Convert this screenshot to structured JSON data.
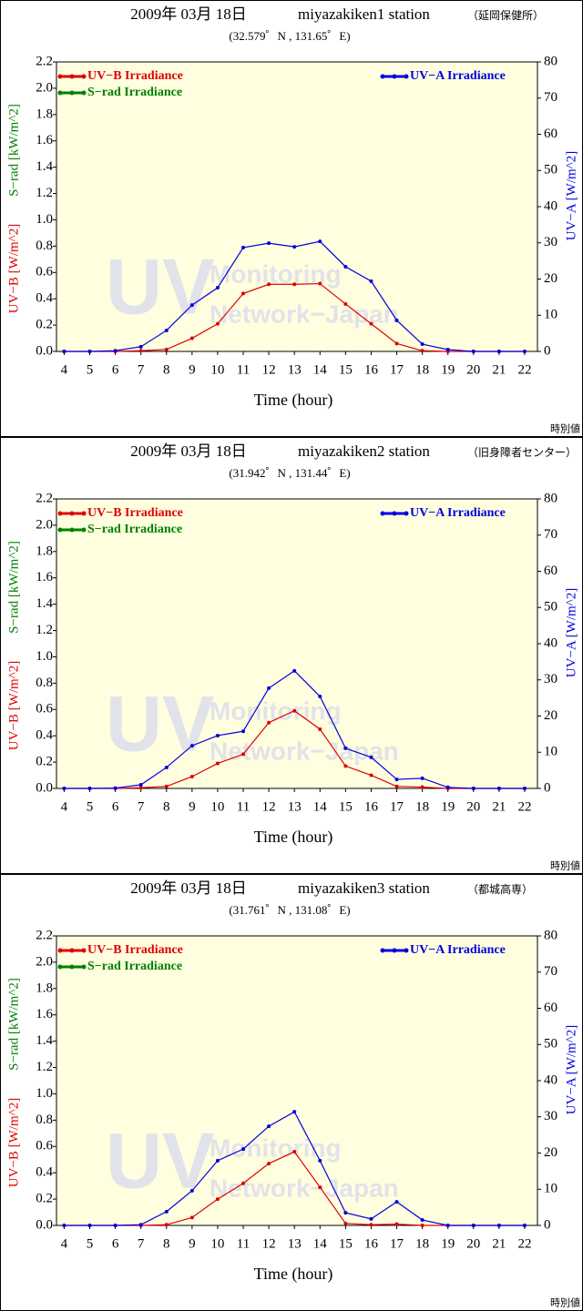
{
  "chart_data": [
    {
      "type": "line",
      "title": "2009年 03月 18日",
      "station": "miyazakiken1 station",
      "location": "（延岡保健所）",
      "coordinates": "(32.579゜N , 131.65゜E)",
      "x_label": "Time (hour)",
      "y_label": "UV−B [W/m^2]",
      "y_label_2": "S−rad [kW/m^2]",
      "y2_label": "UV−A [W/m^2]",
      "note": "時別値",
      "watermark": [
        "UV",
        "Monitoring",
        "Network−Japan"
      ],
      "plot_background": "#ffffe0",
      "x": [
        4,
        5,
        6,
        7,
        8,
        9,
        10,
        11,
        12,
        13,
        14,
        15,
        16,
        17,
        18,
        19,
        20,
        21,
        22
      ],
      "xlim": [
        3.7,
        22.5
      ],
      "xticks": [
        4,
        5,
        6,
        7,
        8,
        9,
        10,
        11,
        12,
        13,
        14,
        15,
        16,
        17,
        18,
        19,
        20,
        21,
        22
      ],
      "ylim": [
        0,
        2.2
      ],
      "yticks": [
        {
          "value": 0,
          "label": "0.0"
        },
        0.2,
        0.4,
        0.6,
        0.8,
        {
          "value": 1,
          "label": "1.0"
        },
        1.2,
        1.4,
        1.6,
        1.8,
        {
          "value": 2,
          "label": "2.0"
        },
        2.2
      ],
      "y2lim": [
        0,
        80
      ],
      "y2ticks": [
        0,
        10,
        20,
        30,
        40,
        50,
        60,
        70,
        80
      ],
      "series": [
        {
          "name": "UV−B Irradiance",
          "color": "#e00000",
          "legend": "upper left",
          "values": [
            0,
            0,
            0,
            0.005,
            0.015,
            0.1,
            0.21,
            0.44,
            0.51,
            0.51,
            0.515,
            0.36,
            0.21,
            0.06,
            0.005,
            0,
            0,
            0,
            0
          ]
        },
        {
          "name": "S−rad Irradiance",
          "color": "#008000",
          "legend": "upper left",
          "values": [
            null,
            null,
            null,
            null,
            null,
            null,
            null,
            null,
            null,
            null,
            null,
            null,
            null,
            null,
            null,
            null,
            null,
            null,
            null
          ]
        },
        {
          "name": "UV−A Irradiance",
          "color": "#0000e0",
          "legend": "upper right",
          "axis": "y2",
          "values": [
            0,
            0,
            0.2,
            1.3,
            5.8,
            12.8,
            17.6,
            28.7,
            29.9,
            28.9,
            30.4,
            23.4,
            19.4,
            8.6,
            2,
            0.5,
            0,
            0,
            0
          ]
        }
      ]
    },
    {
      "type": "line",
      "title": "2009年 03月 18日",
      "station": "miyazakiken2 station",
      "location": "（旧身障者センター）",
      "coordinates": "(31.942゜N , 131.44゜E)",
      "x_label": "Time (hour)",
      "y_label": "UV−B [W/m^2]",
      "y_label_2": "S−rad [kW/m^2]",
      "y2_label": "UV−A [W/m^2]",
      "note": "時別値",
      "watermark": [
        "UV",
        "Monitoring",
        "Network−Japan"
      ],
      "plot_background": "#ffffe0",
      "x": [
        4,
        5,
        6,
        7,
        8,
        9,
        10,
        11,
        12,
        13,
        14,
        15,
        16,
        17,
        18,
        19,
        20,
        21,
        22
      ],
      "xlim": [
        3.7,
        22.5
      ],
      "xticks": [
        4,
        5,
        6,
        7,
        8,
        9,
        10,
        11,
        12,
        13,
        14,
        15,
        16,
        17,
        18,
        19,
        20,
        21,
        22
      ],
      "ylim": [
        0,
        2.2
      ],
      "yticks": [
        {
          "value": 0,
          "label": "0.0"
        },
        0.2,
        0.4,
        0.6,
        0.8,
        {
          "value": 1,
          "label": "1.0"
        },
        1.2,
        1.4,
        1.6,
        1.8,
        {
          "value": 2,
          "label": "2.0"
        },
        2.2
      ],
      "y2lim": [
        0,
        80
      ],
      "y2ticks": [
        0,
        10,
        20,
        30,
        40,
        50,
        60,
        70,
        80
      ],
      "series": [
        {
          "name": "UV−B Irradiance",
          "color": "#e00000",
          "legend": "upper left",
          "values": [
            0,
            0,
            0,
            0.005,
            0.015,
            0.09,
            0.19,
            0.26,
            0.5,
            0.59,
            0.45,
            0.17,
            0.1,
            0.015,
            0.01,
            0,
            0,
            0,
            0
          ]
        },
        {
          "name": "S−rad Irradiance",
          "color": "#008000",
          "legend": "upper left",
          "values": [
            null,
            null,
            null,
            null,
            null,
            null,
            null,
            null,
            null,
            null,
            null,
            null,
            null,
            null,
            null,
            null,
            null,
            null,
            null
          ]
        },
        {
          "name": "UV−A Irradiance",
          "color": "#0000e0",
          "legend": "upper right",
          "axis": "y2",
          "values": [
            0,
            0,
            0.1,
            1,
            5.8,
            11.8,
            14.6,
            15.8,
            27.7,
            32.5,
            25.4,
            11.1,
            8.6,
            2.5,
            2.8,
            0.3,
            0,
            0,
            0
          ]
        }
      ]
    },
    {
      "type": "line",
      "title": "2009年 03月 18日",
      "station": "miyazakiken3 station",
      "location": "（都城高専）",
      "coordinates": "(31.761゜N , 131.08゜E)",
      "x_label": "Time (hour)",
      "y_label": "UV−B [W/m^2]",
      "y_label_2": "S−rad [kW/m^2]",
      "y2_label": "UV−A [W/m^2]",
      "note": "時別値",
      "watermark": [
        "UV",
        "Monitoring",
        "Network−Japan"
      ],
      "plot_background": "#ffffe0",
      "x": [
        4,
        5,
        6,
        7,
        8,
        9,
        10,
        11,
        12,
        13,
        14,
        15,
        16,
        17,
        18,
        19,
        20,
        21,
        22
      ],
      "xlim": [
        3.7,
        22.5
      ],
      "xticks": [
        4,
        5,
        6,
        7,
        8,
        9,
        10,
        11,
        12,
        13,
        14,
        15,
        16,
        17,
        18,
        19,
        20,
        21,
        22
      ],
      "ylim": [
        0,
        2.2
      ],
      "yticks": [
        {
          "value": 0,
          "label": "0.0"
        },
        0.2,
        0.4,
        0.6,
        0.8,
        {
          "value": 1,
          "label": "1.0"
        },
        1.2,
        1.4,
        1.6,
        1.8,
        {
          "value": 2,
          "label": "2.0"
        },
        2.2
      ],
      "y2lim": [
        0,
        80
      ],
      "y2ticks": [
        0,
        10,
        20,
        30,
        40,
        50,
        60,
        70,
        80
      ],
      "series": [
        {
          "name": "UV−B Irradiance",
          "color": "#e00000",
          "legend": "upper left",
          "values": [
            0,
            0,
            0,
            0,
            0.005,
            0.06,
            0.2,
            0.32,
            0.47,
            0.56,
            0.29,
            0.015,
            0.005,
            0.01,
            0,
            0,
            0,
            0,
            0
          ]
        },
        {
          "name": "S−rad Irradiance",
          "color": "#008000",
          "legend": "upper left",
          "values": [
            null,
            null,
            null,
            null,
            null,
            null,
            null,
            null,
            null,
            null,
            null,
            null,
            null,
            null,
            null,
            null,
            null,
            null,
            null
          ]
        },
        {
          "name": "UV−A Irradiance",
          "color": "#0000e0",
          "legend": "upper right",
          "axis": "y2",
          "values": [
            0,
            0,
            0,
            0.2,
            3.8,
            9.6,
            17.9,
            21.1,
            27.4,
            31.4,
            17.9,
            3.5,
            1.8,
            6.5,
            1.5,
            0,
            0,
            0,
            0
          ]
        }
      ]
    }
  ]
}
